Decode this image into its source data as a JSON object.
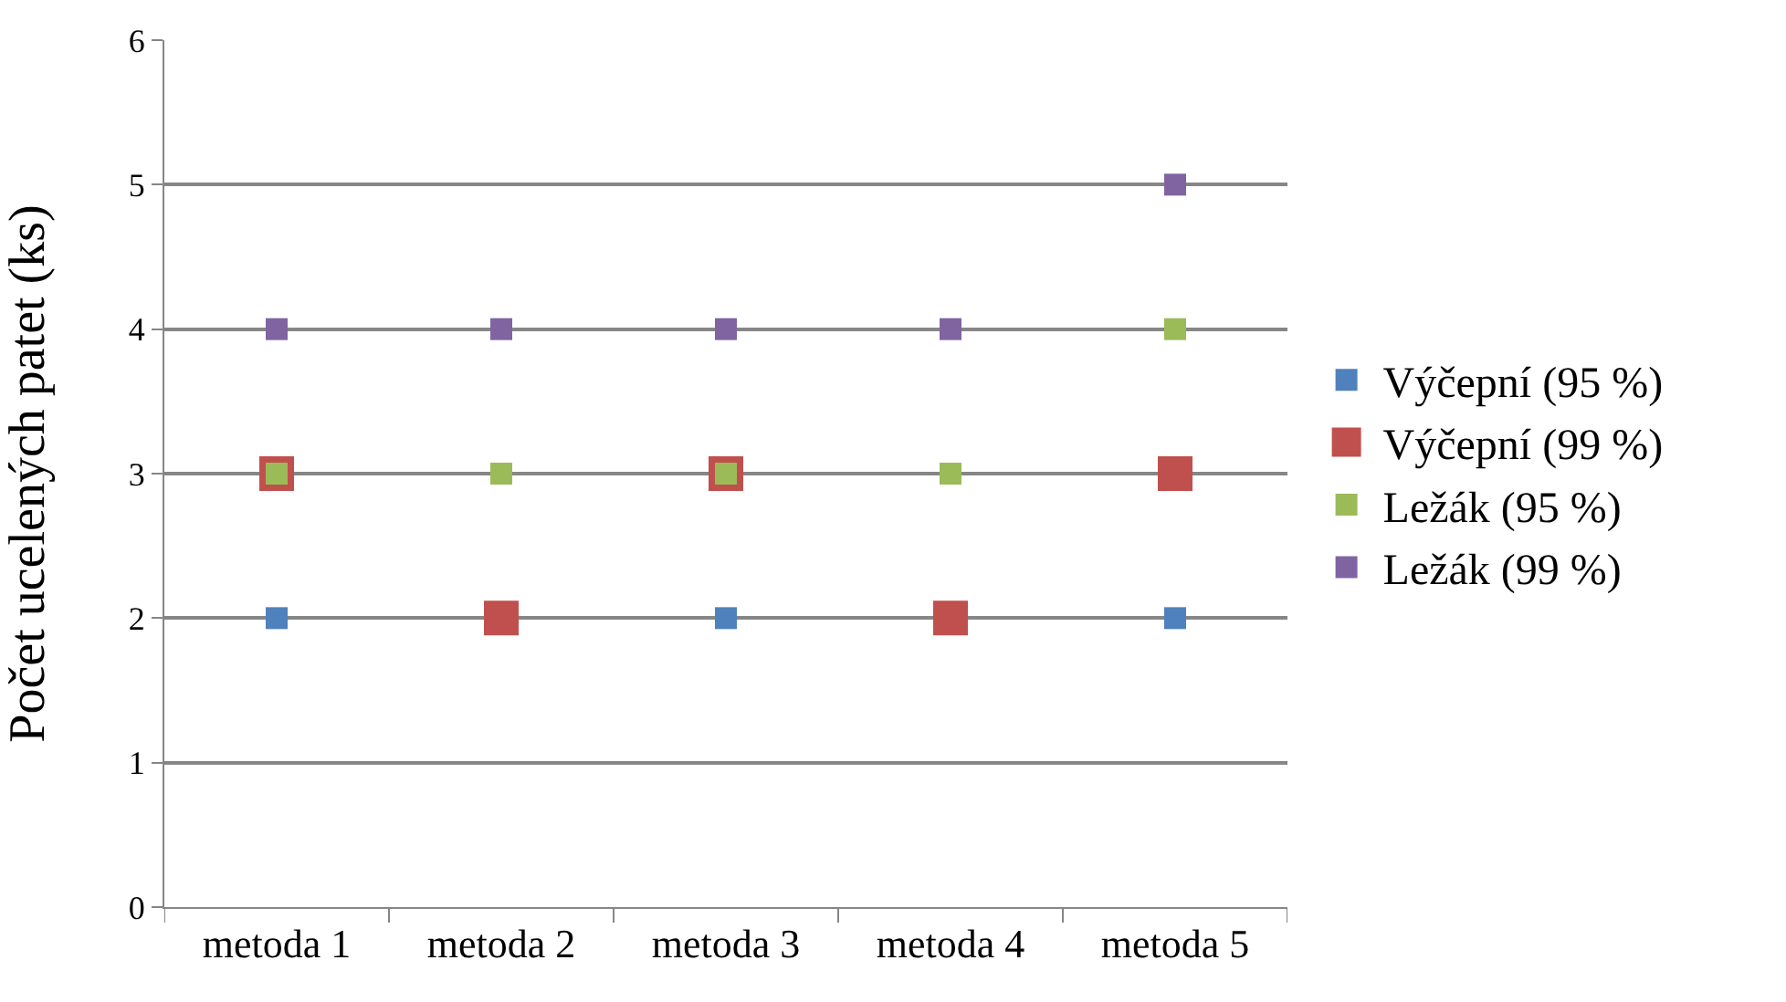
{
  "chart_data": {
    "type": "scatter",
    "ylabel": "Počet ucelených patet (ks)",
    "categories": [
      "metoda 1",
      "metoda 2",
      "metoda 3",
      "metoda 4",
      "metoda 5"
    ],
    "series": [
      {
        "name": "Výčepní (95 %)",
        "color": "#4f81bd",
        "values": [
          2,
          null,
          2,
          null,
          2
        ]
      },
      {
        "name": "Výčepní (99 %)",
        "color": "#c0504d",
        "values": [
          3,
          2,
          3,
          2,
          3
        ]
      },
      {
        "name": "Ležák (95 %)",
        "color": "#9bbb59",
        "values": [
          3,
          3,
          3,
          3,
          4
        ]
      },
      {
        "name": "Ležák (99 %)",
        "color": "#8064a2",
        "values": [
          4,
          4,
          4,
          4,
          5
        ]
      }
    ],
    "ylim": [
      0,
      6
    ],
    "yticks": [
      0,
      1,
      2,
      3,
      4,
      5,
      6
    ],
    "grid": "y",
    "legend": "right",
    "marker": "square"
  }
}
